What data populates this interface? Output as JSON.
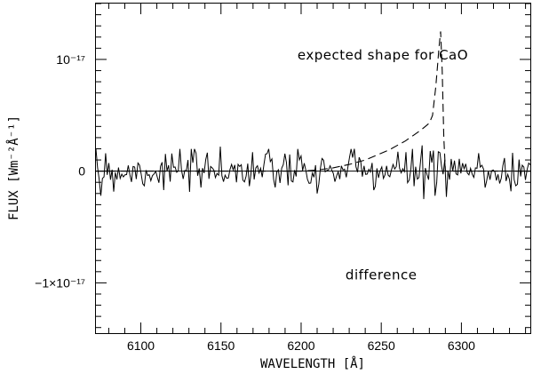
{
  "chart_data": {
    "type": "line",
    "title": "",
    "xlabel": "WAVELENGTH [Å]",
    "ylabel": "FLUX [Wm⁻²Å⁻¹]",
    "xlim": [
      6072,
      6343
    ],
    "ylim": [
      -1.45e-17,
      1.5e-17
    ],
    "xticks": [
      6100,
      6150,
      6200,
      6250,
      6300
    ],
    "xtick_labels": [
      "6100",
      "6150",
      "6200",
      "6250",
      "6300"
    ],
    "yticks": [
      -1e-17,
      0,
      1e-17
    ],
    "ytick_labels": [
      "−1×10⁻¹⁷",
      "0",
      "10⁻¹⁷"
    ],
    "grid": false,
    "annotations": [
      {
        "text": "expected shape for CaO",
        "x": 6251,
        "y": 1e-17
      },
      {
        "text": "difference",
        "x": 6250,
        "y": -9.7e-18
      }
    ],
    "series": [
      {
        "name": "expected shape for CaO",
        "style": "dashed",
        "x": [
          6072,
          6150,
          6200,
          6210,
          6220,
          6230,
          6240,
          6250,
          6255,
          6260,
          6265,
          6270,
          6275,
          6280,
          6282,
          6284,
          6285,
          6286,
          6287,
          6288,
          6289,
          6290,
          6343
        ],
        "values": [
          0,
          0,
          0,
          1e-19,
          3e-19,
          6e-19,
          1e-18,
          1.6e-18,
          1.9e-18,
          2.3e-18,
          2.7e-18,
          3.2e-18,
          3.7e-18,
          4.3e-18,
          5e-18,
          7.5e-18,
          9.2e-18,
          1.1e-17,
          1.25e-17,
          9e-18,
          3e-18,
          0,
          0
        ]
      },
      {
        "name": "difference",
        "style": "solid",
        "generated": "noise",
        "seed": 7,
        "count": 270,
        "sigma": 9e-19,
        "x_range": [
          6072,
          6343
        ],
        "spikes": [
          {
            "x": 6075,
            "value": -2.2e-18
          },
          {
            "x": 6078,
            "value": 1.6e-18
          },
          {
            "x": 6150,
            "value": 2.2e-18
          },
          {
            "x": 6170,
            "value": 1.7e-18
          },
          {
            "x": 6210,
            "value": -2e-18
          },
          {
            "x": 6233,
            "value": 2e-18
          },
          {
            "x": 6265,
            "value": 1.7e-18
          },
          {
            "x": 6276,
            "value": 2.3e-18
          },
          {
            "x": 6277,
            "value": -2.5e-18
          },
          {
            "x": 6281,
            "value": 1.8e-18
          },
          {
            "x": 6284,
            "value": -2.2e-18
          },
          {
            "x": 6291,
            "value": -2.3e-18
          },
          {
            "x": 6331,
            "value": -1.8e-18
          }
        ]
      }
    ]
  }
}
